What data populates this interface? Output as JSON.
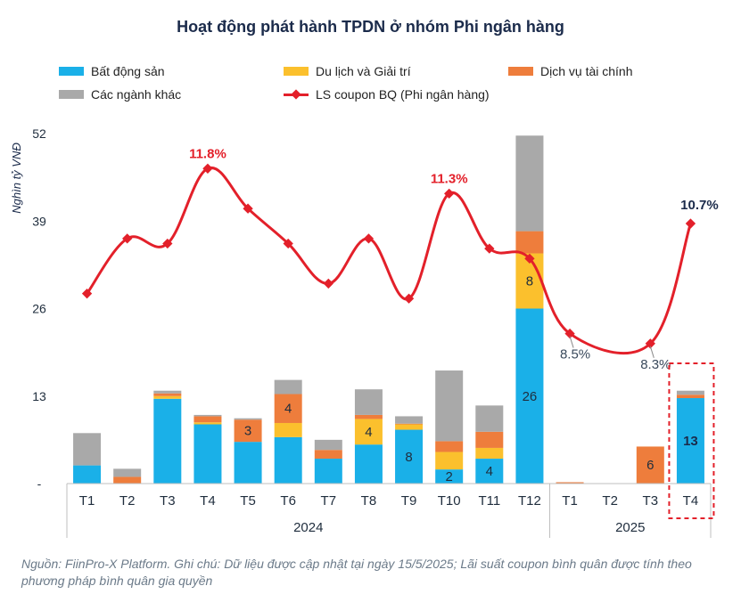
{
  "chart_data": {
    "type": "bar",
    "title": "Hoạt động phát hành TPDN ở nhóm Phi ngân hàng",
    "ylabel": "Nghìn tỷ VNĐ",
    "xlabel": "",
    "ylim": [
      0,
      52
    ],
    "yticks": [
      "-",
      "13",
      "26",
      "39",
      "52"
    ],
    "ytick_values": [
      0,
      13,
      26,
      39,
      52
    ],
    "categories": [
      "T1",
      "T2",
      "T3",
      "T4",
      "T5",
      "T6",
      "T7",
      "T8",
      "T9",
      "T10",
      "T11",
      "T12",
      "T1",
      "T2",
      "T3",
      "T4"
    ],
    "groups": [
      {
        "label": "2024",
        "count": 12
      },
      {
        "label": "2025",
        "count": 4
      }
    ],
    "series": [
      {
        "name": "Bất động sản",
        "color": "#1ab0e8",
        "values": [
          2.7,
          0,
          12.6,
          8.8,
          6.2,
          6.9,
          3.7,
          5.8,
          8,
          2.1,
          3.7,
          26,
          0,
          0,
          0,
          12.7
        ],
        "labels": [
          "",
          "",
          "",
          "",
          "",
          "",
          "",
          "",
          "8",
          "2",
          "4",
          "26",
          "",
          "",
          "",
          "13"
        ]
      },
      {
        "name": "Du lịch và Giải trí",
        "color": "#fbc02d",
        "values": [
          0,
          0,
          0.4,
          0.3,
          0,
          2.1,
          0,
          3.8,
          0.8,
          2.6,
          1.6,
          8.2,
          0,
          0,
          0,
          0
        ],
        "labels": [
          "",
          "",
          "",
          "",
          "",
          "",
          "",
          "4",
          "",
          "",
          "",
          "8",
          "",
          "",
          "",
          ""
        ]
      },
      {
        "name": "Dịch vụ tài chính",
        "color": "#ee7d3c",
        "values": [
          0,
          1,
          0.4,
          0.9,
          3.3,
          4.3,
          1.3,
          0.6,
          0.1,
          1.6,
          2.4,
          3.3,
          0.2,
          0,
          5.5,
          0.5
        ],
        "labels": [
          "",
          "",
          "",
          "",
          "3",
          "4",
          "",
          "",
          "",
          "",
          "",
          "",
          "",
          "",
          "6",
          ""
        ]
      },
      {
        "name": "Các ngành khác",
        "color": "#a9a9a9",
        "values": [
          4.8,
          1.2,
          0.4,
          0.2,
          0.2,
          2.1,
          1.5,
          3.8,
          1.1,
          10.5,
          3.9,
          14.2,
          0,
          0,
          0,
          0.6
        ],
        "labels": [
          "",
          "",
          "",
          "",
          "",
          "",
          "",
          "",
          "",
          "",
          "",
          "",
          "",
          "",
          "",
          ""
        ]
      },
      {
        "name": "LS coupon BQ (Phi ngân hàng)",
        "color": "#e3202a",
        "type": "line",
        "values": [
          9.3,
          10.4,
          10.3,
          11.8,
          11.0,
          10.3,
          9.5,
          10.4,
          9.2,
          11.3,
          10.2,
          10.0,
          8.5,
          null,
          8.3,
          10.7
        ],
        "labels": [
          "",
          "",
          "",
          "11.8%",
          "",
          "",
          "",
          "",
          "",
          "11.3%",
          "",
          "",
          "8.5%",
          "",
          "8.3%",
          "10.7%"
        ]
      }
    ],
    "highlight_index": 15,
    "legend_placement": "top"
  },
  "source_note": "Nguồn: FiinPro-X Platform. Ghi chú: Dữ liệu được cập nhật tại ngày 15/5/2025; Lãi suất coupon bình quân được tính theo phương pháp bình quân gia quyền"
}
